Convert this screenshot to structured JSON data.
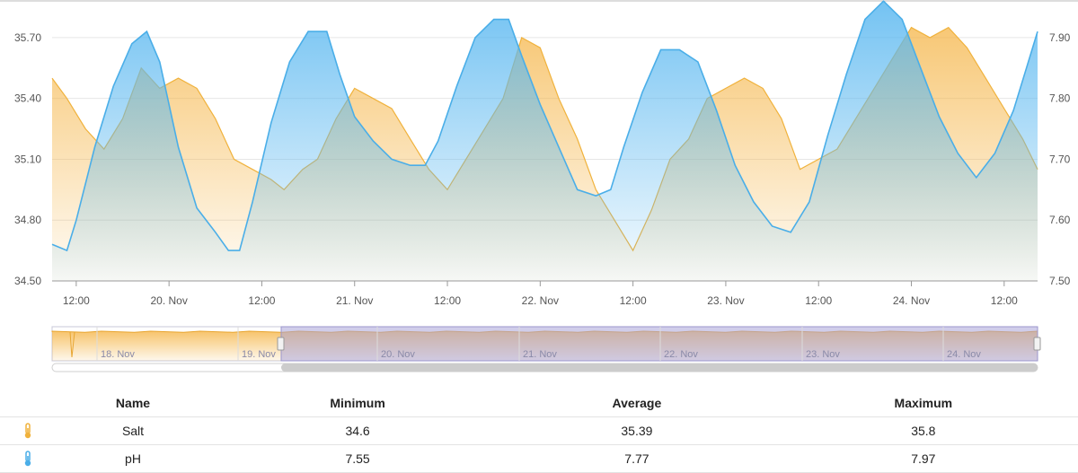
{
  "chart_data": {
    "type": "area",
    "x_ticks": [
      "12:00",
      "20. Nov",
      "12:00",
      "21. Nov",
      "12:00",
      "22. Nov",
      "12:00",
      "23. Nov",
      "12:00",
      "24. Nov",
      "12:00"
    ],
    "y_left": {
      "ylim": [
        34.5,
        35.85
      ],
      "ticks": [
        "34.50",
        "34.80",
        "35.10",
        "35.40",
        "35.70"
      ]
    },
    "y_right": {
      "ylim": [
        7.5,
        7.95
      ],
      "ticks": [
        "7.50",
        "7.60",
        "7.70",
        "7.80",
        "7.90"
      ]
    },
    "series": [
      {
        "name": "Salt",
        "axis": "left",
        "color": "#f0b23c",
        "x": [
          19.37,
          19.45,
          19.55,
          19.65,
          19.75,
          19.85,
          19.95,
          20.05,
          20.15,
          20.25,
          20.35,
          20.45,
          20.55,
          20.62,
          20.72,
          20.8,
          20.9,
          21.0,
          21.1,
          21.2,
          21.3,
          21.4,
          21.5,
          21.6,
          21.7,
          21.8,
          21.9,
          22.0,
          22.1,
          22.2,
          22.3,
          22.4,
          22.5,
          22.6,
          22.7,
          22.8,
          22.9,
          23.0,
          23.1,
          23.2,
          23.3,
          23.4,
          23.5,
          23.6,
          23.7,
          23.8,
          23.9,
          24.0,
          24.1,
          24.2,
          24.3,
          24.4,
          24.5,
          24.6,
          24.68
        ],
        "values": [
          35.5,
          35.4,
          35.25,
          35.15,
          35.3,
          35.55,
          35.45,
          35.5,
          35.45,
          35.3,
          35.1,
          35.05,
          35.0,
          34.95,
          35.05,
          35.1,
          35.3,
          35.45,
          35.4,
          35.35,
          35.2,
          35.05,
          34.95,
          35.1,
          35.25,
          35.4,
          35.7,
          35.65,
          35.4,
          35.2,
          34.95,
          34.8,
          34.65,
          34.85,
          35.1,
          35.2,
          35.4,
          35.45,
          35.5,
          35.45,
          35.3,
          35.05,
          35.1,
          35.15,
          35.3,
          35.45,
          35.6,
          35.75,
          35.7,
          35.75,
          35.65,
          35.5,
          35.35,
          35.2,
          35.05
        ]
      },
      {
        "name": "pH",
        "axis": "right",
        "color": "#4aaee8",
        "x": [
          19.37,
          19.45,
          19.5,
          19.6,
          19.7,
          19.8,
          19.88,
          19.95,
          20.05,
          20.15,
          20.25,
          20.32,
          20.38,
          20.45,
          20.55,
          20.65,
          20.75,
          20.85,
          20.92,
          21.0,
          21.1,
          21.2,
          21.3,
          21.38,
          21.45,
          21.55,
          21.65,
          21.75,
          21.83,
          21.9,
          22.0,
          22.1,
          22.2,
          22.3,
          22.38,
          22.45,
          22.55,
          22.65,
          22.75,
          22.85,
          22.95,
          23.05,
          23.15,
          23.25,
          23.35,
          23.45,
          23.55,
          23.65,
          23.75,
          23.85,
          23.95,
          24.05,
          24.15,
          24.25,
          24.35,
          24.45,
          24.55,
          24.62,
          24.68
        ],
        "values": [
          7.56,
          7.55,
          7.6,
          7.72,
          7.82,
          7.89,
          7.91,
          7.86,
          7.72,
          7.62,
          7.58,
          7.55,
          7.55,
          7.63,
          7.76,
          7.86,
          7.91,
          7.91,
          7.84,
          7.77,
          7.73,
          7.7,
          7.69,
          7.69,
          7.73,
          7.82,
          7.9,
          7.93,
          7.93,
          7.87,
          7.79,
          7.72,
          7.65,
          7.64,
          7.65,
          7.72,
          7.81,
          7.88,
          7.88,
          7.86,
          7.78,
          7.69,
          7.63,
          7.59,
          7.58,
          7.63,
          7.74,
          7.84,
          7.93,
          7.96,
          7.93,
          7.85,
          7.77,
          7.71,
          7.67,
          7.71,
          7.78,
          7.85,
          7.91
        ]
      }
    ],
    "navigator": {
      "labels": [
        "18. Nov",
        "19. Nov",
        "20. Nov",
        "21. Nov",
        "22. Nov",
        "23. Nov",
        "24. Nov"
      ]
    },
    "stats_table": {
      "headers": [
        "Name",
        "Minimum",
        "Average",
        "Maximum"
      ],
      "rows": [
        {
          "name": "Salt",
          "min": "34.6",
          "avg": "35.39",
          "max": "35.8",
          "icon": "thermometer-icon",
          "color": "#f0b23c"
        },
        {
          "name": "pH",
          "min": "7.55",
          "avg": "7.77",
          "max": "7.97",
          "icon": "thermometer-icon",
          "color": "#4aaee8"
        }
      ]
    }
  }
}
